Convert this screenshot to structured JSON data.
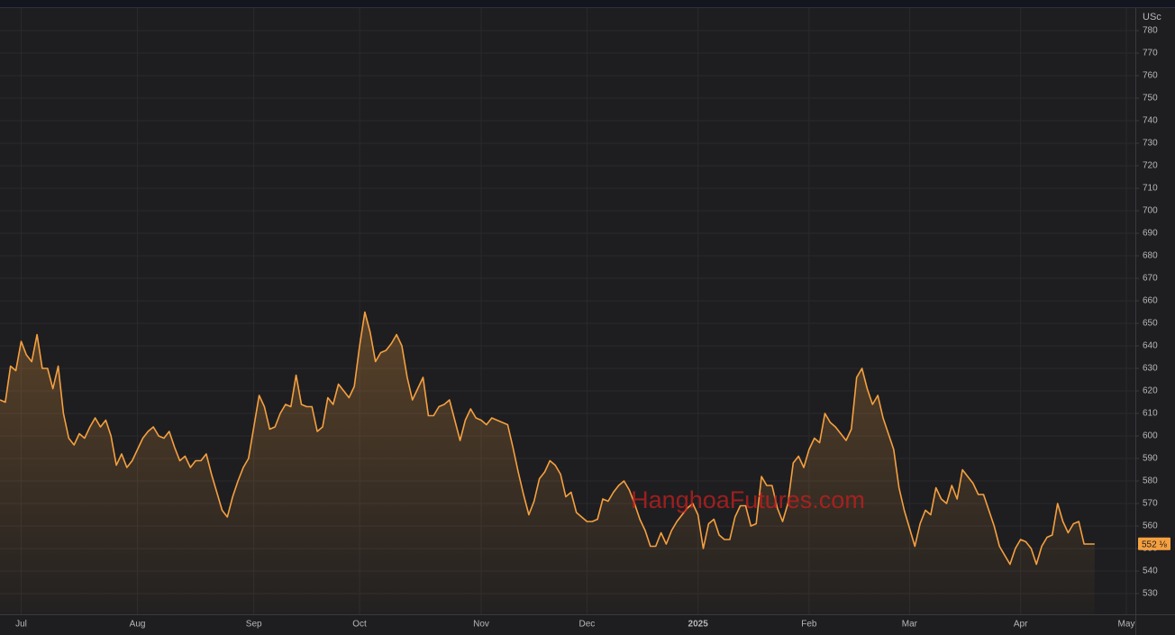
{
  "chart_data": {
    "type": "area-line",
    "unit_label": "USc",
    "watermark": "HanghoaFutures.com",
    "color": "#f5a040",
    "grid": true,
    "categories": [
      null,
      null,
      null,
      null,
      "Jul",
      null,
      null,
      null,
      null,
      null,
      null,
      null,
      null,
      null,
      null,
      null,
      null,
      null,
      null,
      null,
      null,
      null,
      null,
      null,
      null,
      null,
      "Aug",
      null,
      null,
      null,
      null,
      null,
      null,
      null,
      null,
      null,
      null,
      null,
      null,
      null,
      null,
      null,
      null,
      null,
      null,
      null,
      null,
      null,
      "Sep",
      null,
      null,
      null,
      null,
      null,
      null,
      null,
      null,
      null,
      null,
      null,
      null,
      null,
      null,
      null,
      null,
      null,
      null,
      null,
      "Oct",
      null,
      null,
      null,
      null,
      null,
      null,
      null,
      null,
      null,
      null,
      null,
      null,
      null,
      null,
      null,
      null,
      null,
      null,
      null,
      null,
      null,
      null,
      "Nov",
      null,
      null,
      null,
      null,
      null,
      null,
      null,
      null,
      null,
      null,
      null,
      null,
      null,
      null,
      null,
      null,
      null,
      null,
      null,
      "Dec",
      null,
      null,
      null,
      null,
      null,
      null,
      null,
      null,
      null,
      null,
      null,
      null,
      null,
      null,
      null,
      null,
      null,
      null,
      null,
      null,
      "2025",
      null,
      null,
      null,
      null,
      null,
      null,
      null,
      null,
      null,
      null,
      null,
      null,
      null,
      null,
      null,
      null,
      null,
      null,
      null,
      null,
      "Feb",
      null,
      null,
      null,
      null,
      null,
      null,
      null,
      null,
      null,
      null,
      null,
      null,
      null,
      null,
      null,
      null,
      null,
      null,
      "Mar",
      null,
      null,
      null,
      null,
      null,
      null,
      null,
      null,
      null,
      null,
      null,
      null,
      null,
      null,
      null,
      null,
      null,
      null,
      null,
      null,
      "Apr",
      null,
      null,
      null,
      null,
      null,
      null,
      null,
      null,
      null,
      null,
      null,
      null,
      null,
      null,
      null,
      null,
      null,
      null,
      null,
      "May"
    ],
    "values": [
      616,
      615,
      631,
      629,
      642,
      636,
      633,
      645,
      630,
      630,
      621,
      631,
      610,
      599,
      596,
      601,
      599,
      604,
      608,
      604,
      607,
      600,
      587,
      592,
      586,
      589,
      594,
      599,
      602,
      604,
      600,
      599,
      602,
      595,
      589,
      591,
      586,
      589,
      589,
      592,
      583,
      575,
      567,
      564,
      573,
      580,
      586,
      590,
      604,
      618,
      613,
      603,
      604,
      610,
      614,
      613,
      627,
      614,
      613,
      613,
      602,
      604,
      617,
      614,
      623,
      620,
      617,
      622,
      640,
      655,
      646,
      633,
      637,
      638,
      641,
      645,
      640,
      626,
      616,
      621,
      626,
      609,
      609,
      613,
      614,
      616,
      607,
      598,
      607,
      612,
      608,
      607,
      605,
      608,
      607,
      606,
      605,
      595,
      584,
      574,
      565,
      571,
      581,
      584,
      589,
      587,
      583,
      573,
      575,
      566,
      564,
      562,
      562,
      563,
      572,
      571,
      575,
      578,
      580,
      576,
      570,
      563,
      558,
      551,
      551,
      557,
      552,
      558,
      562,
      565,
      568,
      570,
      565,
      550,
      561,
      563,
      556,
      554,
      554,
      564,
      569,
      569,
      560,
      561,
      582,
      578,
      578,
      568,
      562,
      570,
      588,
      591,
      586,
      594,
      599,
      597,
      610,
      606,
      604,
      601,
      598,
      603,
      626,
      630,
      621,
      614,
      618,
      608,
      601,
      594,
      577,
      567,
      559,
      551,
      561,
      567,
      565,
      577,
      572,
      570,
      578,
      572,
      585,
      582,
      579,
      574,
      574,
      567,
      560,
      551,
      547,
      543,
      550,
      554,
      553,
      550,
      543,
      551,
      555,
      556,
      570,
      562,
      557,
      561,
      562,
      552,
      552,
      552,
      null,
      null,
      null,
      null,
      null,
      null
    ],
    "last_price": {
      "value": 552.125,
      "label": "552 ⅛"
    },
    "ylim": [
      520.8,
      790
    ],
    "yticks": [
      530,
      540,
      550,
      560,
      570,
      580,
      590,
      600,
      610,
      620,
      630,
      640,
      650,
      660,
      670,
      680,
      690,
      700,
      710,
      720,
      730,
      740,
      750,
      760,
      770,
      780
    ]
  }
}
